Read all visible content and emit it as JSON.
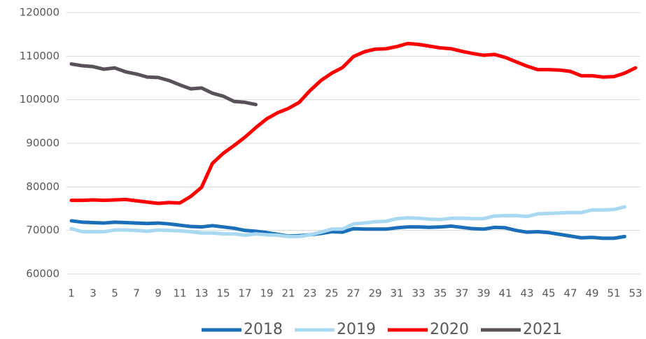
{
  "chart_data": {
    "type": "line",
    "x": [
      1,
      2,
      3,
      4,
      5,
      6,
      7,
      8,
      9,
      10,
      11,
      12,
      13,
      14,
      15,
      16,
      17,
      18,
      19,
      20,
      21,
      22,
      23,
      24,
      25,
      26,
      27,
      28,
      29,
      30,
      31,
      32,
      33,
      34,
      35,
      36,
      37,
      38,
      39,
      40,
      41,
      42,
      43,
      44,
      45,
      46,
      47,
      48,
      49,
      50,
      51,
      52,
      53
    ],
    "xlim": [
      1,
      53
    ],
    "xticks": [
      1,
      3,
      5,
      7,
      9,
      11,
      13,
      15,
      17,
      19,
      21,
      23,
      25,
      27,
      29,
      31,
      33,
      35,
      37,
      39,
      41,
      43,
      45,
      47,
      49,
      51,
      53
    ],
    "ylim": [
      60000,
      120000
    ],
    "yticks": [
      60000,
      70000,
      80000,
      90000,
      100000,
      110000,
      120000
    ],
    "grid": true,
    "legend": "bottom",
    "series": [
      {
        "name": "2018",
        "color": "#1a6fb8",
        "values": [
          72200,
          71900,
          71800,
          71700,
          71900,
          71800,
          71700,
          71600,
          71700,
          71500,
          71200,
          70900,
          70800,
          71100,
          70800,
          70500,
          70000,
          69800,
          69500,
          69100,
          68700,
          68800,
          69000,
          69300,
          69700,
          69600,
          70400,
          70300,
          70300,
          70300,
          70600,
          70800,
          70800,
          70700,
          70800,
          71000,
          70700,
          70400,
          70300,
          70700,
          70600,
          70000,
          69600,
          69700,
          69500,
          69100,
          68700,
          68300,
          68400,
          68200,
          68200,
          68600,
          null
        ]
      },
      {
        "name": "2019",
        "color": "#a9d9f2",
        "values": [
          70400,
          69700,
          69700,
          69700,
          70100,
          70100,
          70000,
          69800,
          70100,
          70000,
          69900,
          69700,
          69400,
          69400,
          69200,
          69200,
          68900,
          69200,
          69000,
          68900,
          68600,
          68600,
          69000,
          69600,
          70300,
          70300,
          71500,
          71700,
          72000,
          72100,
          72700,
          72900,
          72800,
          72600,
          72500,
          72800,
          72800,
          72700,
          72700,
          73300,
          73400,
          73400,
          73200,
          73800,
          73900,
          74000,
          74100,
          74100,
          74700,
          74700,
          74800,
          75400,
          null
        ]
      },
      {
        "name": "2020",
        "color": "#ff0000",
        "values": [
          76900,
          76900,
          77000,
          76900,
          77000,
          77100,
          76800,
          76500,
          76200,
          76400,
          76300,
          77800,
          79900,
          85400,
          87700,
          89500,
          91400,
          93600,
          95600,
          97000,
          98000,
          99400,
          102100,
          104400,
          106100,
          107400,
          109900,
          111000,
          111600,
          111700,
          112200,
          112900,
          112700,
          112300,
          111900,
          111700,
          111100,
          110600,
          110200,
          110400,
          109700,
          108700,
          107700,
          106900,
          106900,
          106800,
          106500,
          105500,
          105500,
          105200,
          105300,
          106100,
          107300
        ]
      },
      {
        "name": "2021",
        "color": "#595159",
        "values": [
          108200,
          107800,
          107600,
          107000,
          107300,
          106400,
          105900,
          105200,
          105100,
          104400,
          103400,
          102500,
          102700,
          101500,
          100800,
          99600,
          99400,
          98900,
          null,
          null,
          null,
          null,
          null,
          null,
          null,
          null,
          null,
          null,
          null,
          null,
          null,
          null,
          null,
          null,
          null,
          null,
          null,
          null,
          null,
          null,
          null,
          null,
          null,
          null,
          null,
          null,
          null,
          null,
          null,
          null,
          null,
          null,
          null
        ]
      }
    ]
  }
}
